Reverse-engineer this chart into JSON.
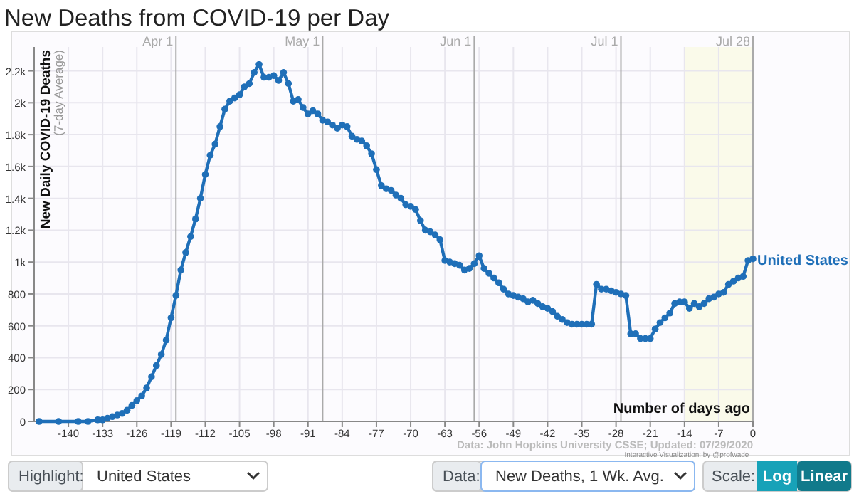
{
  "chart_data": {
    "type": "line",
    "title": "New Deaths from COVID-19 per Day",
    "xlabel": "Number of days ago",
    "ylabel": "New Daily COVID-19 Deaths\n(7-day Average)",
    "x": [
      -146,
      -142,
      -138,
      -136,
      -134,
      -133,
      -132,
      -131,
      -130,
      -129,
      -128,
      -127,
      -126,
      -125,
      -124,
      -123,
      -122,
      -121,
      -120,
      -119,
      -118,
      -117,
      -116,
      -115,
      -114,
      -113,
      -112,
      -111,
      -110,
      -109,
      -108,
      -107,
      -106,
      -105,
      -104,
      -103,
      -102,
      -101,
      -100,
      -99,
      -98,
      -97,
      -96,
      -95,
      -94,
      -93,
      -92,
      -91,
      -90,
      -89,
      -88,
      -87,
      -86,
      -85,
      -84,
      -83,
      -82,
      -81,
      -80,
      -79,
      -78,
      -77,
      -76,
      -75,
      -74,
      -73,
      -72,
      -71,
      -70,
      -69,
      -68,
      -67,
      -66,
      -65,
      -64,
      -63,
      -62,
      -61,
      -60,
      -59,
      -58,
      -57,
      -56,
      -55,
      -54,
      -53,
      -52,
      -51,
      -50,
      -49,
      -48,
      -47,
      -46,
      -45,
      -44,
      -43,
      -42,
      -41,
      -40,
      -39,
      -38,
      -37,
      -36,
      -35,
      -34,
      -33,
      -32,
      -31,
      -30,
      -29,
      -28,
      -27,
      -26,
      -25,
      -24,
      -23,
      -22,
      -21,
      -20,
      -19,
      -18,
      -17,
      -16,
      -15,
      -14,
      -13,
      -12,
      -11,
      -10,
      -9,
      -8,
      -7,
      -6,
      -5,
      -4,
      -3,
      -2,
      -1,
      0
    ],
    "series": [
      {
        "name": "United States",
        "color": "#1f6fb8",
        "values": [
          0,
          0,
          0,
          0,
          10,
          10,
          20,
          30,
          40,
          50,
          70,
          100,
          130,
          160,
          210,
          280,
          350,
          420,
          510,
          650,
          790,
          950,
          1060,
          1160,
          1270,
          1400,
          1550,
          1670,
          1740,
          1850,
          1960,
          2010,
          2030,
          2050,
          2100,
          2120,
          2190,
          2240,
          2160,
          2160,
          2170,
          2140,
          2190,
          2120,
          2010,
          2020,
          1970,
          1930,
          1950,
          1930,
          1890,
          1880,
          1860,
          1840,
          1860,
          1850,
          1790,
          1770,
          1760,
          1730,
          1680,
          1580,
          1480,
          1460,
          1450,
          1420,
          1400,
          1360,
          1350,
          1330,
          1260,
          1200,
          1190,
          1170,
          1140,
          1010,
          1000,
          990,
          980,
          950,
          960,
          990,
          1040,
          960,
          930,
          900,
          870,
          830,
          800,
          790,
          780,
          770,
          750,
          760,
          740,
          720,
          710,
          690,
          660,
          640,
          620,
          610,
          610,
          610,
          610,
          610,
          860,
          830,
          830,
          820,
          810,
          800,
          790,
          550,
          550,
          520,
          520,
          520,
          580,
          620,
          650,
          680,
          740,
          750,
          750,
          710,
          740,
          720,
          740,
          770,
          780,
          800,
          810,
          860,
          880,
          900,
          910,
          1010,
          1020
        ]
      }
    ],
    "xlim": [
      -147,
      0
    ],
    "xticks": [
      -140,
      -133,
      -126,
      -119,
      -112,
      -105,
      -98,
      -91,
      -84,
      -77,
      -70,
      -63,
      -56,
      -49,
      -42,
      -35,
      -28,
      -21,
      -14,
      -7,
      0
    ],
    "ylim": [
      0,
      2350
    ],
    "yticks": [
      0,
      200,
      400,
      600,
      800,
      {
        "value": 1000,
        "label": "1k"
      },
      {
        "value": 1200,
        "label": "1.2k"
      },
      {
        "value": 1400,
        "label": "1.4k"
      },
      {
        "value": 1600,
        "label": "1.6k"
      },
      {
        "value": 1800,
        "label": "1.8k"
      },
      {
        "value": 2000,
        "label": "2k"
      },
      {
        "value": 2200,
        "label": "2.2k"
      }
    ],
    "ref_lines": [
      {
        "axis": "x",
        "value": -118,
        "label": "Apr 1",
        "color": "#aaaaaa"
      },
      {
        "axis": "x",
        "value": -88,
        "label": "May 1",
        "color": "#aaaaaa"
      },
      {
        "axis": "x",
        "value": -57,
        "label": "Jun 1",
        "color": "#aaaaaa"
      },
      {
        "axis": "x",
        "value": -27,
        "label": "Jul 1",
        "color": "#aaaaaa"
      },
      {
        "axis": "x",
        "value": 0,
        "label": "Jul 28",
        "color": "#aaaaaa"
      }
    ],
    "bands": [
      {
        "axis": "x",
        "from": -14,
        "to": 0,
        "label": null,
        "color": "#fafaea"
      }
    ],
    "grid": true,
    "marker": "circle",
    "line_style": "solid",
    "annotations": [
      "Data: John Hopkins University CSSE; Updated: 07/29/2020",
      "Interactive Visualization: by @profwade_",
      "Highlight:",
      "United States",
      "Data:",
      "New Deaths, 1 Wk. Avg.",
      "Scale:",
      "Log",
      "Linear"
    ]
  }
}
